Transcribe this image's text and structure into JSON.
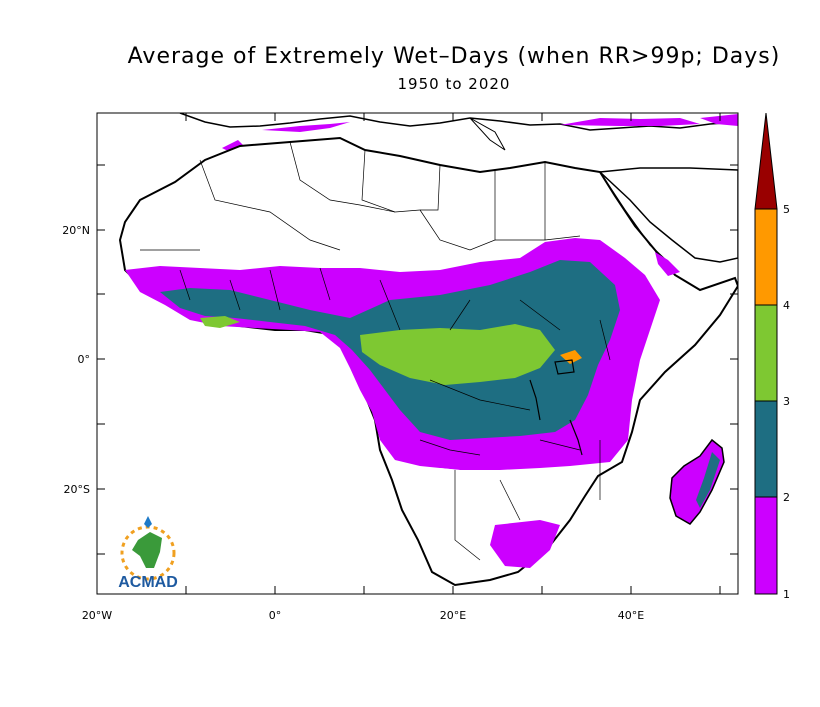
{
  "map": {
    "title": "Average of Extremely Wet–Days (when RR>99p; Days)",
    "subtitle": "1950 to 2020",
    "lon_labels": [
      "20°W",
      "0°",
      "20°E",
      "40°E"
    ],
    "lat_labels": [
      "20°N",
      "0°",
      "20°S"
    ],
    "logo_text": "ACMAD",
    "colorbar": {
      "levels": [
        "1",
        "2",
        "3",
        "4",
        "5"
      ],
      "colors": {
        "1_2": "#cc00ff",
        "2_3": "#1e6e82",
        "3_4": "#7ec832",
        "4_5": "#ff9900",
        "above_5": "#990000"
      }
    }
  }
}
